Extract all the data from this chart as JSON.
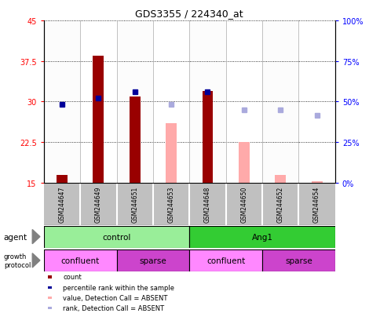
{
  "title": "GDS3355 / 224340_at",
  "samples": [
    "GSM244647",
    "GSM244649",
    "GSM244651",
    "GSM244653",
    "GSM244648",
    "GSM244650",
    "GSM244652",
    "GSM244654"
  ],
  "ylim_left": [
    15,
    45
  ],
  "ylim_right": [
    0,
    100
  ],
  "yticks_left": [
    15,
    22.5,
    30,
    37.5,
    45
  ],
  "ytick_labels_left": [
    "15",
    "22.5",
    "30",
    "37.5",
    "45"
  ],
  "yticks_right": [
    0,
    25,
    50,
    75,
    100
  ],
  "ytick_labels_right": [
    "0%",
    "25%",
    "50%",
    "75%",
    "100%"
  ],
  "count_values": [
    16.5,
    38.5,
    31.0,
    null,
    32.0,
    null,
    null,
    null
  ],
  "count_color": "#990000",
  "rank_values": [
    29.5,
    30.7,
    31.8,
    null,
    31.8,
    null,
    null,
    null
  ],
  "rank_color": "#000099",
  "absent_value_values": [
    null,
    null,
    null,
    26.0,
    null,
    22.5,
    16.5,
    15.3
  ],
  "absent_value_color": "#FFAAAA",
  "absent_rank_values": [
    null,
    null,
    null,
    29.5,
    null,
    28.5,
    28.5,
    27.5
  ],
  "absent_rank_color": "#AAAADD",
  "bar_bottom": 15,
  "bar_width": 0.3,
  "agent_groups": [
    {
      "label": "control",
      "start": 0,
      "end": 4,
      "color": "#99EE99"
    },
    {
      "label": "Ang1",
      "start": 4,
      "end": 8,
      "color": "#33CC33"
    }
  ],
  "growth_groups": [
    {
      "label": "confluent",
      "start": 0,
      "end": 2,
      "color": "#FF88FF"
    },
    {
      "label": "sparse",
      "start": 2,
      "end": 4,
      "color": "#CC44CC"
    },
    {
      "label": "confluent",
      "start": 4,
      "end": 6,
      "color": "#FF88FF"
    },
    {
      "label": "sparse",
      "start": 6,
      "end": 8,
      "color": "#CC44CC"
    }
  ],
  "legend_items": [
    {
      "label": "count",
      "color": "#990000"
    },
    {
      "label": "percentile rank within the sample",
      "color": "#000099"
    },
    {
      "label": "value, Detection Call = ABSENT",
      "color": "#FFAAAA"
    },
    {
      "label": "rank, Detection Call = ABSENT",
      "color": "#AAAADD"
    }
  ],
  "background_color": "#FFFFFF",
  "sample_bg_color": "#C0C0C0",
  "grid_linestyle": "dotted",
  "marker_size": 5
}
